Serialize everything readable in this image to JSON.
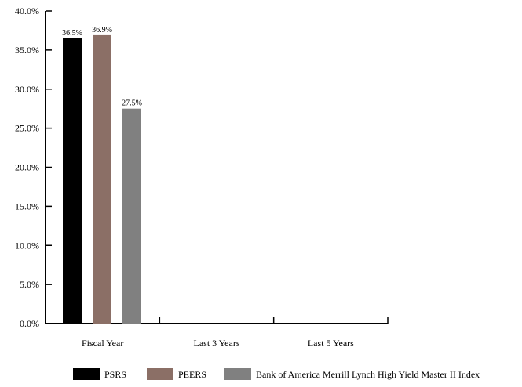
{
  "chart_data": {
    "type": "bar",
    "categories": [
      "Fiscal Year",
      "Last 3 Years",
      "Last 5 Years"
    ],
    "series": [
      {
        "name": "PSRS",
        "color": "#000000",
        "values": [
          36.5,
          null,
          null
        ],
        "labels": [
          "36.5%",
          "",
          ""
        ]
      },
      {
        "name": "PEERS",
        "color": "#8b6f66",
        "values": [
          36.9,
          null,
          null
        ],
        "labels": [
          "36.9%",
          "",
          ""
        ]
      },
      {
        "name": "Bank of America Merrill Lynch High Yield Master II Index",
        "color": "#808080",
        "values": [
          27.5,
          null,
          null
        ],
        "labels": [
          "27.5%",
          "",
          ""
        ]
      }
    ],
    "yticks": [
      "0.0%",
      "5.0%",
      "10.0%",
      "15.0%",
      "20.0%",
      "25.0%",
      "30.0%",
      "35.0%",
      "40.0%"
    ],
    "ylim": [
      0,
      40
    ],
    "title": "",
    "xlabel": "",
    "ylabel": "",
    "grid": false,
    "legend_position": "bottom"
  }
}
